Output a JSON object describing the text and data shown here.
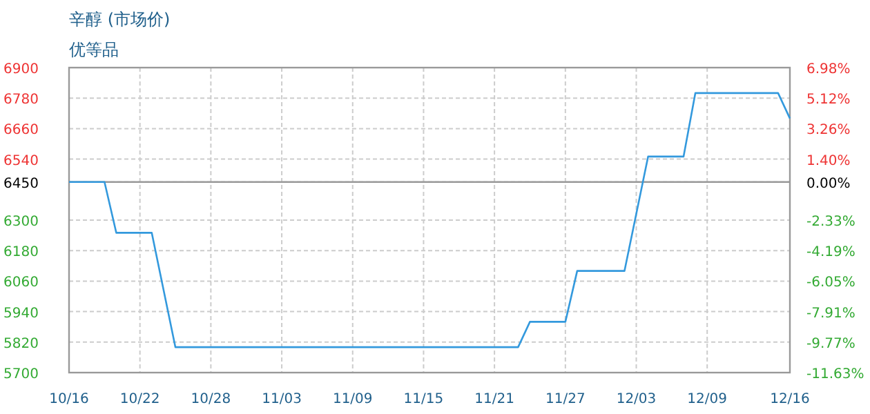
{
  "chart_data": {
    "type": "step",
    "title": "辛醇 (市场价)",
    "subtitle": "优等品",
    "x": [
      "--10-16",
      "--10-19",
      "--10-20",
      "--10-23",
      "--10-25",
      "--11-23",
      "--11-24",
      "--11-27",
      "--11-28",
      "--12-02",
      "--12-04",
      "--12-07",
      "--12-08",
      "--12-15",
      "--12-16"
    ],
    "series": [
      {
        "color": "#3399dd",
        "values": [
          6450,
          6450,
          6250,
          6250,
          5800,
          5800,
          5900,
          5900,
          6100,
          6100,
          6550,
          6550,
          6800,
          6800,
          6700
        ]
      }
    ],
    "xlim": [
      "--10-16",
      "--12-16"
    ],
    "xticks": [
      {
        "value": "--10-16",
        "label": "10/16"
      },
      {
        "value": "--10-22",
        "label": "10/22"
      },
      {
        "value": "--10-28",
        "label": "10/28"
      },
      {
        "value": "--11-03",
        "label": "11/03"
      },
      {
        "value": "--11-09",
        "label": "11/09"
      },
      {
        "value": "--11-15",
        "label": "11/15"
      },
      {
        "value": "--11-21",
        "label": "11/21"
      },
      {
        "value": "--11-27",
        "label": "11/27"
      },
      {
        "value": "--12-03",
        "label": "12/03"
      },
      {
        "value": "--12-09",
        "label": "12/09"
      },
      {
        "value": "--12-16",
        "label": "12/16"
      }
    ],
    "ylim": [
      5700,
      6900
    ],
    "yticks": [
      6900,
      6780,
      6660,
      6540,
      6450,
      6300,
      6180,
      6060,
      5940,
      5820,
      5700
    ],
    "y2lim": [
      -11.63,
      6.98
    ],
    "y2ticks": [
      {
        "value": 6.98,
        "label": "6.98%"
      },
      {
        "value": 5.12,
        "label": "5.12%"
      },
      {
        "value": 3.26,
        "label": "3.26%"
      },
      {
        "value": 1.4,
        "label": "1.40%"
      },
      {
        "value": 0,
        "label": "0.00%"
      },
      {
        "value": -2.33,
        "label": "-2.33%"
      },
      {
        "value": -4.19,
        "label": "-4.19%"
      },
      {
        "value": -6.05,
        "label": "-6.05%"
      },
      {
        "value": -7.91,
        "label": "-7.91%"
      },
      {
        "value": -9.77,
        "label": "-9.77%"
      },
      {
        "value": -11.63,
        "label": "-11.63%"
      }
    ],
    "ref_lines": [
      {
        "axis": "y",
        "value": 6450,
        "color": "#999999"
      }
    ],
    "grid": true
  }
}
